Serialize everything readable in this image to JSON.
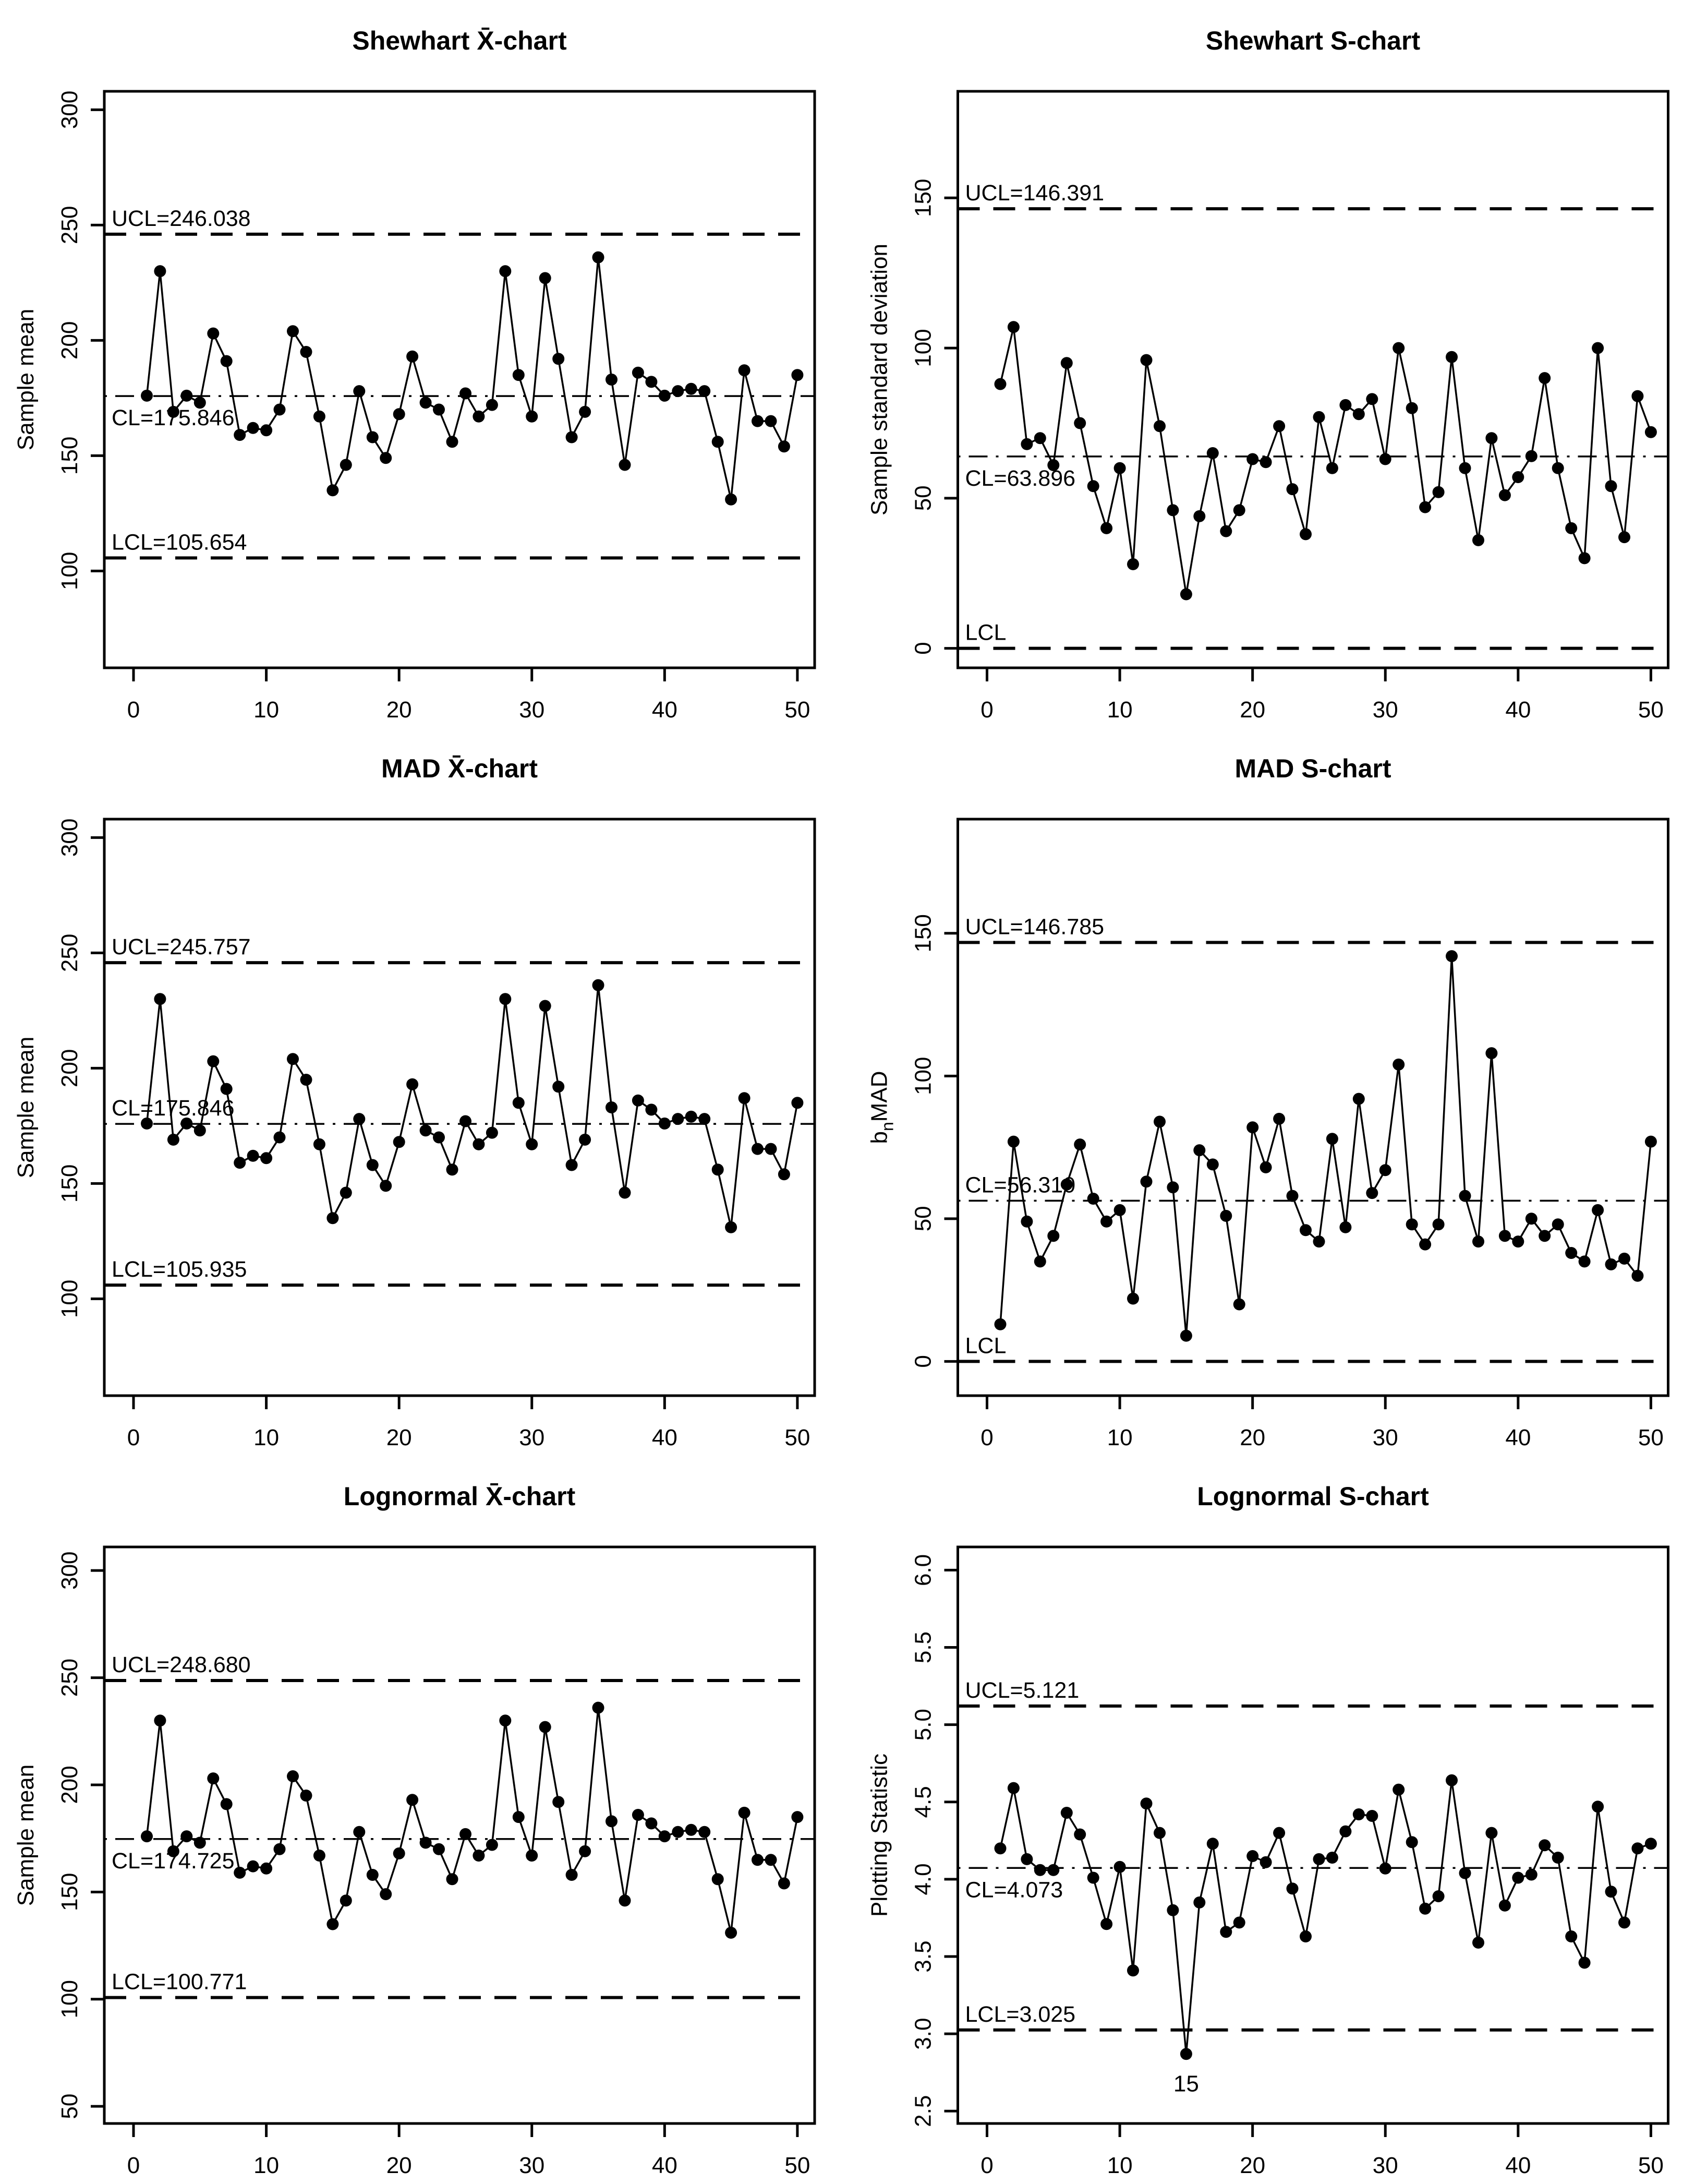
{
  "page": {
    "background_color": "#ffffff",
    "ink_color": "#000000",
    "layout": "2x3 grid of R-style statistical control charts"
  },
  "chart_data": [
    {
      "id": "shewhart-xbar",
      "type": "line",
      "title": "Shewhart  X̄-chart",
      "ylabel_parts": [
        {
          "text": "Sample mean"
        }
      ],
      "xlim": [
        -2.2,
        51.3
      ],
      "ylim": [
        58,
        308
      ],
      "yticks": [
        {
          "v": 100,
          "label": "100"
        },
        {
          "v": 150,
          "label": "150"
        },
        {
          "v": 200,
          "label": "200"
        },
        {
          "v": 250,
          "label": "250"
        },
        {
          "v": 300,
          "label": "300"
        }
      ],
      "xticks": [
        {
          "v": 0,
          "label": "0"
        },
        {
          "v": 10,
          "label": "10"
        },
        {
          "v": 20,
          "label": "20"
        },
        {
          "v": 30,
          "label": "30"
        },
        {
          "v": 40,
          "label": "40"
        },
        {
          "v": 50,
          "label": "50"
        }
      ],
      "ucl": {
        "value": 246.038,
        "label": "UCL=246.038",
        "label_side": "above"
      },
      "cl": {
        "value": 175.846,
        "label": "CL=175.846",
        "label_side": "below"
      },
      "lcl": {
        "value": 105.654,
        "label": "LCL=105.654",
        "label_side": "above"
      },
      "x": [
        1,
        2,
        3,
        4,
        5,
        6,
        7,
        8,
        9,
        10,
        11,
        12,
        13,
        14,
        15,
        16,
        17,
        18,
        19,
        20,
        21,
        22,
        23,
        24,
        25,
        26,
        27,
        28,
        29,
        30,
        31,
        32,
        33,
        34,
        35,
        36,
        37,
        38,
        39,
        40,
        41,
        42,
        43,
        44,
        45,
        46,
        47,
        48,
        49,
        50
      ],
      "values": [
        176,
        230,
        169,
        176,
        173,
        203,
        191,
        159,
        162,
        161,
        170,
        204,
        195,
        167,
        135,
        146,
        178,
        158,
        149,
        168,
        193,
        173,
        170,
        156,
        177,
        167,
        172,
        230,
        185,
        167,
        227,
        192,
        158,
        169,
        236,
        183,
        146,
        186,
        182,
        176,
        178,
        179,
        178,
        156,
        131,
        187,
        165,
        165,
        154,
        185
      ],
      "point_labels": [],
      "grid": false,
      "legend": null
    },
    {
      "id": "shewhart-s",
      "type": "line",
      "title": "Shewhart  S-chart",
      "ylabel_parts": [
        {
          "text": "Sample standard deviation"
        }
      ],
      "xlim": [
        -2.2,
        51.3
      ],
      "ylim": [
        -6.5,
        185.5
      ],
      "yticks": [
        {
          "v": 0,
          "label": "0"
        },
        {
          "v": 50,
          "label": "50"
        },
        {
          "v": 100,
          "label": "100"
        },
        {
          "v": 150,
          "label": "150"
        }
      ],
      "xticks": [
        {
          "v": 0,
          "label": "0"
        },
        {
          "v": 10,
          "label": "10"
        },
        {
          "v": 20,
          "label": "20"
        },
        {
          "v": 30,
          "label": "30"
        },
        {
          "v": 40,
          "label": "40"
        },
        {
          "v": 50,
          "label": "50"
        }
      ],
      "ucl": {
        "value": 146.391,
        "label": "UCL=146.391",
        "label_side": "above"
      },
      "cl": {
        "value": 63.896,
        "label": "CL=63.896",
        "label_side": "below"
      },
      "lcl": {
        "value": 0,
        "label": "LCL",
        "label_side": "above"
      },
      "x": [
        1,
        2,
        3,
        4,
        5,
        6,
        7,
        8,
        9,
        10,
        11,
        12,
        13,
        14,
        15,
        16,
        17,
        18,
        19,
        20,
        21,
        22,
        23,
        24,
        25,
        26,
        27,
        28,
        29,
        30,
        31,
        32,
        33,
        34,
        35,
        36,
        37,
        38,
        39,
        40,
        41,
        42,
        43,
        44,
        45,
        46,
        47,
        48,
        49,
        50
      ],
      "values": [
        88,
        107,
        68,
        70,
        61,
        95,
        75,
        54,
        40,
        60,
        28,
        96,
        74,
        46,
        18,
        44,
        65,
        39,
        46,
        63,
        62,
        74,
        53,
        38,
        77,
        60,
        81,
        78,
        83,
        63,
        100,
        80,
        47,
        52,
        97,
        60,
        36,
        70,
        51,
        57,
        64,
        90,
        60,
        40,
        30,
        100,
        54,
        37,
        84,
        72
      ],
      "point_labels": [],
      "grid": false,
      "legend": null
    },
    {
      "id": "mad-xbar",
      "type": "line",
      "title": "MAD  X̄-chart",
      "ylabel_parts": [
        {
          "text": "Sample mean"
        }
      ],
      "xlim": [
        -2.2,
        51.3
      ],
      "ylim": [
        58,
        308
      ],
      "yticks": [
        {
          "v": 100,
          "label": "100"
        },
        {
          "v": 150,
          "label": "150"
        },
        {
          "v": 200,
          "label": "200"
        },
        {
          "v": 250,
          "label": "250"
        },
        {
          "v": 300,
          "label": "300"
        }
      ],
      "xticks": [
        {
          "v": 0,
          "label": "0"
        },
        {
          "v": 10,
          "label": "10"
        },
        {
          "v": 20,
          "label": "20"
        },
        {
          "v": 30,
          "label": "30"
        },
        {
          "v": 40,
          "label": "40"
        },
        {
          "v": 50,
          "label": "50"
        }
      ],
      "ucl": {
        "value": 245.757,
        "label": "UCL=245.757",
        "label_side": "above"
      },
      "cl": {
        "value": 175.846,
        "label": "CL=175.846",
        "label_side": "above"
      },
      "lcl": {
        "value": 105.935,
        "label": "LCL=105.935",
        "label_side": "above"
      },
      "x": [
        1,
        2,
        3,
        4,
        5,
        6,
        7,
        8,
        9,
        10,
        11,
        12,
        13,
        14,
        15,
        16,
        17,
        18,
        19,
        20,
        21,
        22,
        23,
        24,
        25,
        26,
        27,
        28,
        29,
        30,
        31,
        32,
        33,
        34,
        35,
        36,
        37,
        38,
        39,
        40,
        41,
        42,
        43,
        44,
        45,
        46,
        47,
        48,
        49,
        50
      ],
      "values": [
        176,
        230,
        169,
        176,
        173,
        203,
        191,
        159,
        162,
        161,
        170,
        204,
        195,
        167,
        135,
        146,
        178,
        158,
        149,
        168,
        193,
        173,
        170,
        156,
        177,
        167,
        172,
        230,
        185,
        167,
        227,
        192,
        158,
        169,
        236,
        183,
        146,
        186,
        182,
        176,
        178,
        179,
        178,
        156,
        131,
        187,
        165,
        165,
        154,
        185
      ],
      "point_labels": [],
      "grid": false,
      "legend": null
    },
    {
      "id": "mad-s",
      "type": "line",
      "title": "MAD  S-chart",
      "ylabel_parts": [
        {
          "text": "b"
        },
        {
          "text": "n",
          "sub": true
        },
        {
          "text": "MAD"
        }
      ],
      "xlim": [
        -2.2,
        51.3
      ],
      "ylim": [
        -12,
        190
      ],
      "yticks": [
        {
          "v": 0,
          "label": "0"
        },
        {
          "v": 50,
          "label": "50"
        },
        {
          "v": 100,
          "label": "100"
        },
        {
          "v": 150,
          "label": "150"
        }
      ],
      "xticks": [
        {
          "v": 0,
          "label": "0"
        },
        {
          "v": 10,
          "label": "10"
        },
        {
          "v": 20,
          "label": "20"
        },
        {
          "v": 30,
          "label": "30"
        },
        {
          "v": 40,
          "label": "40"
        },
        {
          "v": 50,
          "label": "50"
        }
      ],
      "ucl": {
        "value": 146.785,
        "label": "UCL=146.785",
        "label_side": "above"
      },
      "cl": {
        "value": 56.31,
        "label": "CL=56.310",
        "label_side": "above"
      },
      "lcl": {
        "value": 0,
        "label": "LCL",
        "label_side": "above"
      },
      "x": [
        1,
        2,
        3,
        4,
        5,
        6,
        7,
        8,
        9,
        10,
        11,
        12,
        13,
        14,
        15,
        16,
        17,
        18,
        19,
        20,
        21,
        22,
        23,
        24,
        25,
        26,
        27,
        28,
        29,
        30,
        31,
        32,
        33,
        34,
        35,
        36,
        37,
        38,
        39,
        40,
        41,
        42,
        43,
        44,
        45,
        46,
        47,
        48,
        49,
        50
      ],
      "values": [
        13,
        77,
        49,
        35,
        44,
        62,
        76,
        57,
        49,
        53,
        22,
        63,
        84,
        61,
        9,
        74,
        69,
        51,
        20,
        82,
        68,
        85,
        58,
        46,
        42,
        78,
        47,
        92,
        59,
        67,
        104,
        48,
        41,
        48,
        142,
        58,
        42,
        108,
        44,
        42,
        50,
        44,
        48,
        38,
        35,
        53,
        34,
        36,
        30,
        77
      ],
      "point_labels": [],
      "grid": false,
      "legend": null
    },
    {
      "id": "lognormal-xbar",
      "type": "line",
      "title": "Lognormal  X̄-chart",
      "ylabel_parts": [
        {
          "text": "Sample mean"
        }
      ],
      "xlim": [
        -2.2,
        51.3
      ],
      "ylim": [
        42,
        311
      ],
      "yticks": [
        {
          "v": 50,
          "label": "50"
        },
        {
          "v": 100,
          "label": "100"
        },
        {
          "v": 150,
          "label": "150"
        },
        {
          "v": 200,
          "label": "200"
        },
        {
          "v": 250,
          "label": "250"
        },
        {
          "v": 300,
          "label": "300"
        }
      ],
      "xticks": [
        {
          "v": 0,
          "label": "0"
        },
        {
          "v": 10,
          "label": "10"
        },
        {
          "v": 20,
          "label": "20"
        },
        {
          "v": 30,
          "label": "30"
        },
        {
          "v": 40,
          "label": "40"
        },
        {
          "v": 50,
          "label": "50"
        }
      ],
      "ucl": {
        "value": 248.68,
        "label": "UCL=248.680",
        "label_side": "above"
      },
      "cl": {
        "value": 174.725,
        "label": "CL=174.725",
        "label_side": "below"
      },
      "lcl": {
        "value": 100.771,
        "label": "LCL=100.771",
        "label_side": "above"
      },
      "x": [
        1,
        2,
        3,
        4,
        5,
        6,
        7,
        8,
        9,
        10,
        11,
        12,
        13,
        14,
        15,
        16,
        17,
        18,
        19,
        20,
        21,
        22,
        23,
        24,
        25,
        26,
        27,
        28,
        29,
        30,
        31,
        32,
        33,
        34,
        35,
        36,
        37,
        38,
        39,
        40,
        41,
        42,
        43,
        44,
        45,
        46,
        47,
        48,
        49,
        50
      ],
      "values": [
        176,
        230,
        169,
        176,
        173,
        203,
        191,
        159,
        162,
        161,
        170,
        204,
        195,
        167,
        135,
        146,
        178,
        158,
        149,
        168,
        193,
        173,
        170,
        156,
        177,
        167,
        172,
        230,
        185,
        167,
        227,
        192,
        158,
        169,
        236,
        183,
        146,
        186,
        182,
        176,
        178,
        179,
        178,
        156,
        131,
        187,
        165,
        165,
        154,
        185
      ],
      "point_labels": [],
      "grid": false,
      "legend": null
    },
    {
      "id": "lognormal-s",
      "type": "line",
      "title": "Lognormal  S-chart",
      "ylabel_parts": [
        {
          "text": "Plotting Statistic"
        }
      ],
      "xlim": [
        -2.2,
        51.3
      ],
      "ylim": [
        2.42,
        6.15
      ],
      "yticks": [
        {
          "v": 2.5,
          "label": "2.5"
        },
        {
          "v": 3.0,
          "label": "3.0"
        },
        {
          "v": 3.5,
          "label": "3.5"
        },
        {
          "v": 4.0,
          "label": "4.0"
        },
        {
          "v": 4.5,
          "label": "4.5"
        },
        {
          "v": 5.0,
          "label": "5.0"
        },
        {
          "v": 5.5,
          "label": "5.5"
        },
        {
          "v": 6.0,
          "label": "6.0"
        }
      ],
      "xticks": [
        {
          "v": 0,
          "label": "0"
        },
        {
          "v": 10,
          "label": "10"
        },
        {
          "v": 20,
          "label": "20"
        },
        {
          "v": 30,
          "label": "30"
        },
        {
          "v": 40,
          "label": "40"
        },
        {
          "v": 50,
          "label": "50"
        }
      ],
      "ucl": {
        "value": 5.121,
        "label": "UCL=5.121",
        "label_side": "above"
      },
      "cl": {
        "value": 4.073,
        "label": "CL=4.073",
        "label_side": "below"
      },
      "lcl": {
        "value": 3.025,
        "label": "LCL=3.025",
        "label_side": "above"
      },
      "x": [
        1,
        2,
        3,
        4,
        5,
        6,
        7,
        8,
        9,
        10,
        11,
        12,
        13,
        14,
        15,
        16,
        17,
        18,
        19,
        20,
        21,
        22,
        23,
        24,
        25,
        26,
        27,
        28,
        29,
        30,
        31,
        32,
        33,
        34,
        35,
        36,
        37,
        38,
        39,
        40,
        41,
        42,
        43,
        44,
        45,
        46,
        47,
        48,
        49,
        50
      ],
      "values": [
        4.2,
        4.59,
        4.13,
        4.06,
        4.06,
        4.43,
        4.29,
        4.01,
        3.71,
        4.08,
        3.41,
        4.49,
        4.3,
        3.8,
        2.87,
        3.85,
        4.23,
        3.66,
        3.72,
        4.15,
        4.11,
        4.3,
        3.94,
        3.63,
        4.13,
        4.14,
        4.31,
        4.42,
        4.41,
        4.07,
        4.58,
        4.24,
        3.81,
        3.89,
        4.64,
        4.04,
        3.59,
        4.3,
        3.83,
        4.01,
        4.03,
        4.22,
        4.14,
        3.63,
        3.46,
        4.47,
        3.92,
        3.72,
        4.2,
        4.23
      ],
      "point_labels": [
        {
          "index": 15,
          "text": "15"
        }
      ],
      "grid": false,
      "legend": null
    }
  ]
}
